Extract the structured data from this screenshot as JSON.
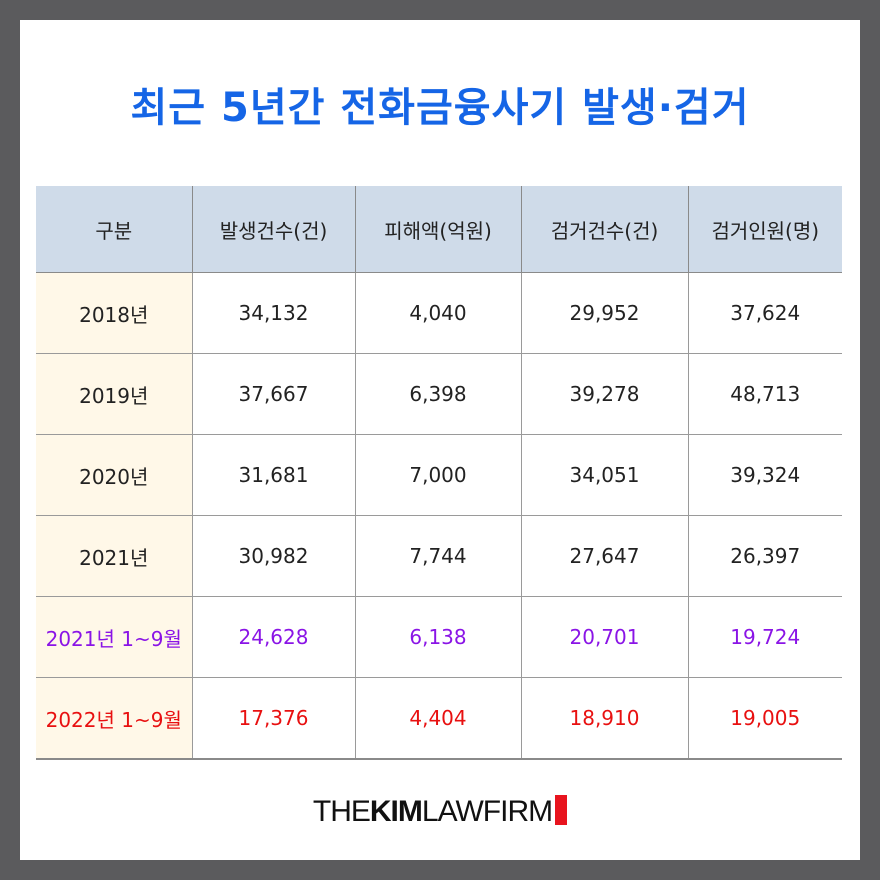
{
  "title": "최근 5년간 전화금융사기 발생·검거",
  "table": {
    "headers": [
      "구분",
      "발생건수(건)",
      "피해액(억원)",
      "검거건수(건)",
      "검거인원(명)"
    ],
    "rows": [
      [
        "2018년",
        "34,132",
        "4,040",
        "29,952",
        "37,624"
      ],
      [
        "2019년",
        "37,667",
        "6,398",
        "39,278",
        "48,713"
      ],
      [
        "2020년",
        "31,681",
        "7,000",
        "34,051",
        "39,324"
      ],
      [
        "2021년",
        "30,982",
        "7,744",
        "27,647",
        "26,397"
      ],
      [
        "2021년 1~9월",
        "24,628",
        "6,138",
        "20,701",
        "19,724"
      ],
      [
        "2022년 1~9월",
        "17,376",
        "4,404",
        "18,910",
        "19,005"
      ]
    ]
  },
  "colors": {
    "title": "#1565e6",
    "header_bg": "#cfdbe9",
    "first_col_bg": "#fff8e8",
    "purple_row": "#8a14e6",
    "red_row": "#e81010",
    "logo_mark": "#e8141e"
  },
  "logo": {
    "part1": "THE",
    "part2": "KIM",
    "part3": "LAWFIRM"
  }
}
